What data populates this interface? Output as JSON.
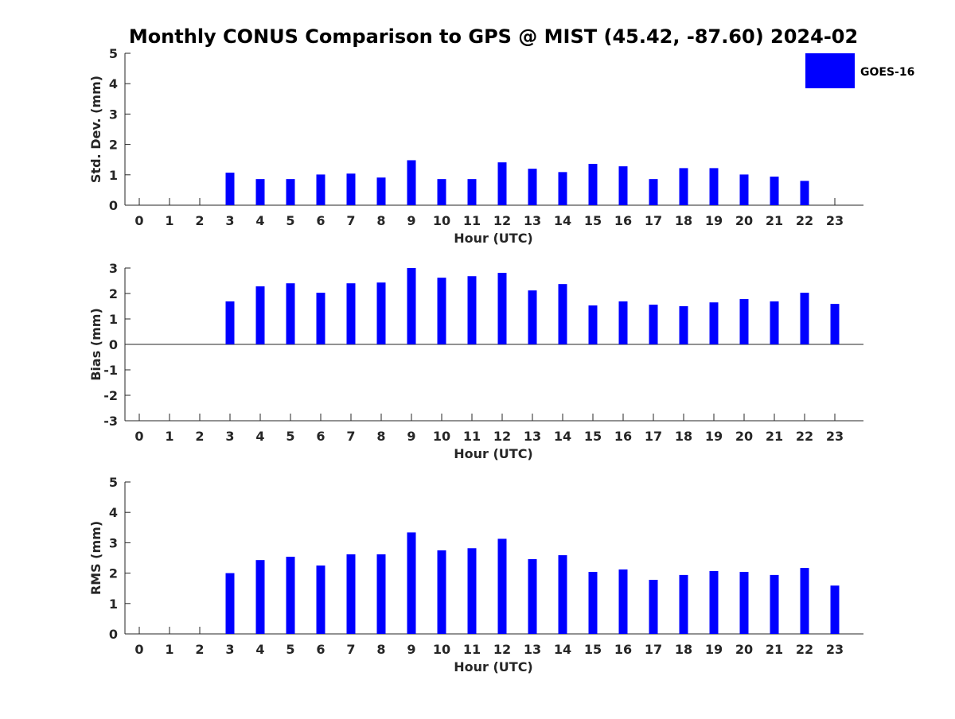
{
  "title": "Monthly CONUS Comparison to GPS @ MIST (45.42, -87.60) 2024-02",
  "legend": {
    "label": "GOES-16",
    "color": "#0000ff"
  },
  "chart_data": [
    {
      "type": "bar",
      "xlabel": "Hour (UTC)",
      "ylabel": "Std. Dev. (mm)",
      "ylim": [
        0,
        5
      ],
      "yticks": [
        "0",
        "1",
        "2",
        "3",
        "4",
        "5"
      ],
      "categories": [
        "0",
        "1",
        "2",
        "3",
        "4",
        "5",
        "6",
        "7",
        "8",
        "9",
        "10",
        "11",
        "12",
        "13",
        "14",
        "15",
        "16",
        "17",
        "18",
        "19",
        "20",
        "21",
        "22",
        "23"
      ],
      "series": [
        {
          "name": "GOES-16",
          "values": [
            null,
            null,
            null,
            1.07,
            0.86,
            0.86,
            1.01,
            1.04,
            0.91,
            1.48,
            0.86,
            0.86,
            1.41,
            1.2,
            1.09,
            1.36,
            1.28,
            0.86,
            1.22,
            1.22,
            1.01,
            0.94,
            0.8,
            null
          ]
        }
      ],
      "grid": false
    },
    {
      "type": "bar",
      "xlabel": "Hour (UTC)",
      "ylabel": "Bias (mm)",
      "ylim": [
        -3,
        3
      ],
      "yticks": [
        "-3",
        "-2",
        "-1",
        "0",
        "1",
        "2",
        "3"
      ],
      "categories": [
        "0",
        "1",
        "2",
        "3",
        "4",
        "5",
        "6",
        "7",
        "8",
        "9",
        "10",
        "11",
        "12",
        "13",
        "14",
        "15",
        "16",
        "17",
        "18",
        "19",
        "20",
        "21",
        "22",
        "23"
      ],
      "series": [
        {
          "name": "GOES-16",
          "values": [
            null,
            null,
            null,
            1.69,
            2.28,
            2.4,
            2.03,
            2.4,
            2.43,
            3.0,
            2.62,
            2.68,
            2.81,
            2.12,
            2.37,
            1.53,
            1.69,
            1.56,
            1.5,
            1.65,
            1.78,
            1.69,
            2.03,
            1.59
          ]
        }
      ],
      "grid": false
    },
    {
      "type": "bar",
      "xlabel": "Hour (UTC)",
      "ylabel": "RMS (mm)",
      "ylim": [
        0,
        5
      ],
      "yticks": [
        "0",
        "1",
        "2",
        "3",
        "4",
        "5"
      ],
      "categories": [
        "0",
        "1",
        "2",
        "3",
        "4",
        "5",
        "6",
        "7",
        "8",
        "9",
        "10",
        "11",
        "12",
        "13",
        "14",
        "15",
        "16",
        "17",
        "18",
        "19",
        "20",
        "21",
        "22",
        "23"
      ],
      "series": [
        {
          "name": "GOES-16",
          "values": [
            null,
            null,
            null,
            2.0,
            2.43,
            2.54,
            2.25,
            2.62,
            2.62,
            3.34,
            2.75,
            2.82,
            3.13,
            2.46,
            2.59,
            2.04,
            2.12,
            1.78,
            1.94,
            2.07,
            2.04,
            1.94,
            2.17,
            1.59
          ]
        }
      ],
      "grid": false
    }
  ]
}
